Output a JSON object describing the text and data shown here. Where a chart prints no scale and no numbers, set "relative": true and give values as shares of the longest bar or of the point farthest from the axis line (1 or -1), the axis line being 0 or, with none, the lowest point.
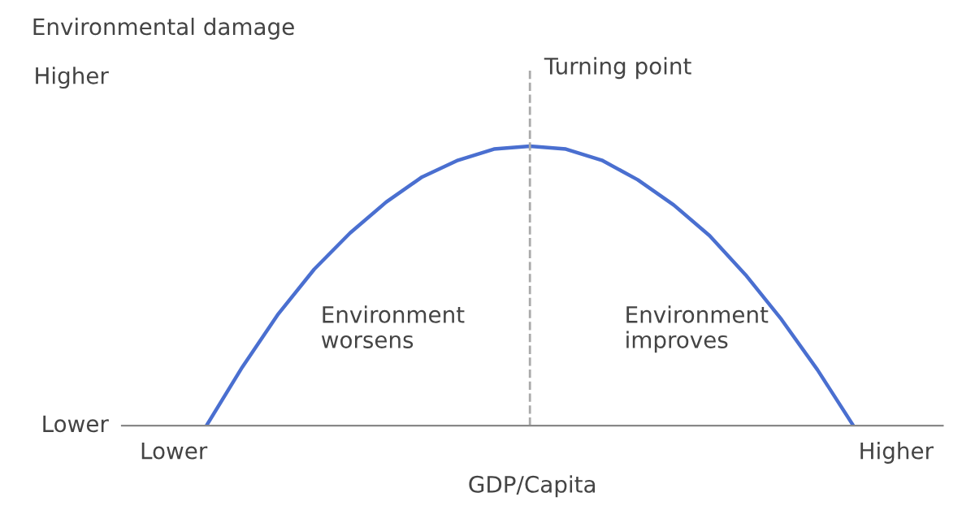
{
  "chart_data": {
    "type": "line",
    "relative": true,
    "xlabel": "GDP/Capita",
    "ylabel": "Environmental damage",
    "categories": [
      null,
      null,
      null,
      null,
      null,
      null,
      null,
      null,
      null,
      null,
      null,
      null,
      null,
      null,
      null,
      null,
      null,
      null,
      null
    ],
    "series": [
      {
        "color": "#4a6fd0",
        "values": [
          0,
          0.21,
          0.4,
          0.56,
          0.69,
          0.8,
          0.89,
          0.95,
          0.99,
          1,
          0.99,
          0.95,
          0.88,
          0.79,
          0.68,
          0.54,
          0.38,
          0.2,
          0
        ]
      }
    ],
    "annotations": [
      "Environment\nworsens",
      "Environment\nimproves",
      "Higher",
      "Lower",
      "Lower",
      "Higher",
      "Turning point"
    ],
    "legend": false,
    "marker": "none",
    "line_style": "solid"
  }
}
